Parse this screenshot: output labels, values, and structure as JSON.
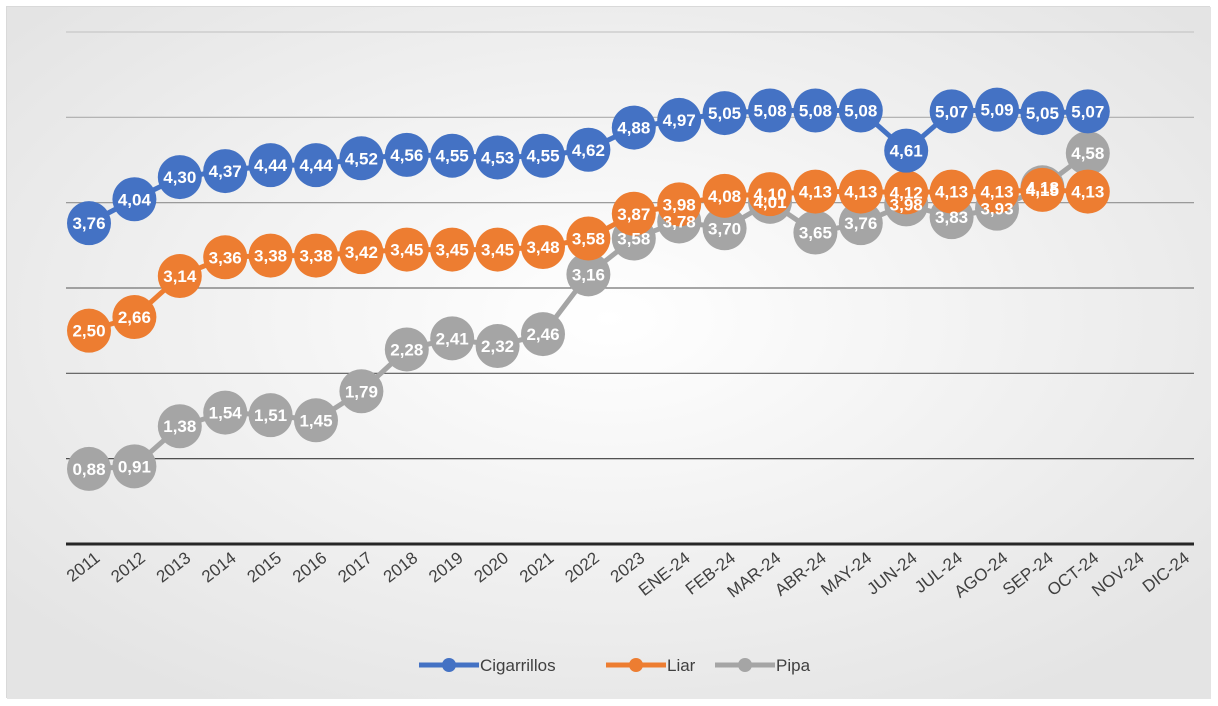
{
  "chart_data": {
    "type": "line",
    "title": "",
    "xlabel": "",
    "ylabel": "",
    "ylim": [
      0,
      6
    ],
    "grid": true,
    "legend_position": "bottom",
    "categories": [
      "2011",
      "2012",
      "2013",
      "2014",
      "2015",
      "2016",
      "2017",
      "2018",
      "2019",
      "2020",
      "2021",
      "2022",
      "2023",
      "ENE-24",
      "FEB-24",
      "MAR-24",
      "ABR-24",
      "MAY-24",
      "JUN-24",
      "JUL-24",
      "AGO-24",
      "SEP-24",
      "OCT-24",
      "NOV-24",
      "DIC-24"
    ],
    "series": [
      {
        "name": "Cigarrillos",
        "color": "#4472c4",
        "values": [
          3.76,
          4.04,
          4.3,
          4.37,
          4.44,
          4.44,
          4.52,
          4.56,
          4.55,
          4.53,
          4.55,
          4.62,
          4.88,
          4.97,
          5.05,
          5.08,
          5.08,
          5.08,
          4.61,
          5.07,
          5.09,
          5.05,
          5.07,
          null,
          null
        ],
        "labels": [
          "3,76",
          "4,04",
          "4,30",
          "4,37",
          "4,44",
          "4,44",
          "4,52",
          "4,56",
          "4,55",
          "4,53",
          "4,55",
          "4,62",
          "4,88",
          "4,97",
          "5,05",
          "5,08",
          "5,08",
          "5,08",
          "4,61",
          "5,07",
          "5,09",
          "5,05",
          "5,07",
          null,
          null
        ]
      },
      {
        "name": "Liar",
        "color": "#ed7d31",
        "values": [
          2.5,
          2.66,
          3.14,
          3.36,
          3.38,
          3.38,
          3.42,
          3.45,
          3.45,
          3.45,
          3.48,
          3.58,
          3.87,
          3.98,
          4.08,
          4.1,
          4.13,
          4.13,
          4.12,
          4.13,
          4.13,
          4.15,
          4.13,
          null,
          null
        ],
        "labels": [
          "2,50",
          "2,66",
          "3,14",
          "3,36",
          "3,38",
          "3,38",
          "3,42",
          "3,45",
          "3,45",
          "3,45",
          "3,48",
          "3,58",
          "3,87",
          "3,98",
          "4,08",
          "4,10",
          "4,13",
          "4,13",
          "4,12",
          "4,13",
          "4,13",
          "4,15",
          "4,13",
          null,
          null
        ]
      },
      {
        "name": "Pipa",
        "color": "#a5a5a5",
        "values": [
          0.88,
          0.91,
          1.38,
          1.54,
          1.51,
          1.45,
          1.79,
          2.28,
          2.41,
          2.32,
          2.46,
          3.16,
          3.58,
          3.78,
          3.7,
          4.01,
          3.65,
          3.76,
          3.98,
          3.83,
          3.93,
          4.18,
          4.58,
          null,
          null
        ],
        "labels": [
          "0,88",
          "0,91",
          "1,38",
          "1,54",
          "1,51",
          "1,45",
          "1,79",
          "2,28",
          "2,41",
          "2,32",
          "2,46",
          "3,16",
          "3,58",
          "3,78",
          "3,70",
          "4,01",
          "3,65",
          "3,76",
          "3,98",
          "3,83",
          "3,93",
          "4,18",
          "4,58",
          null,
          null
        ]
      }
    ]
  }
}
